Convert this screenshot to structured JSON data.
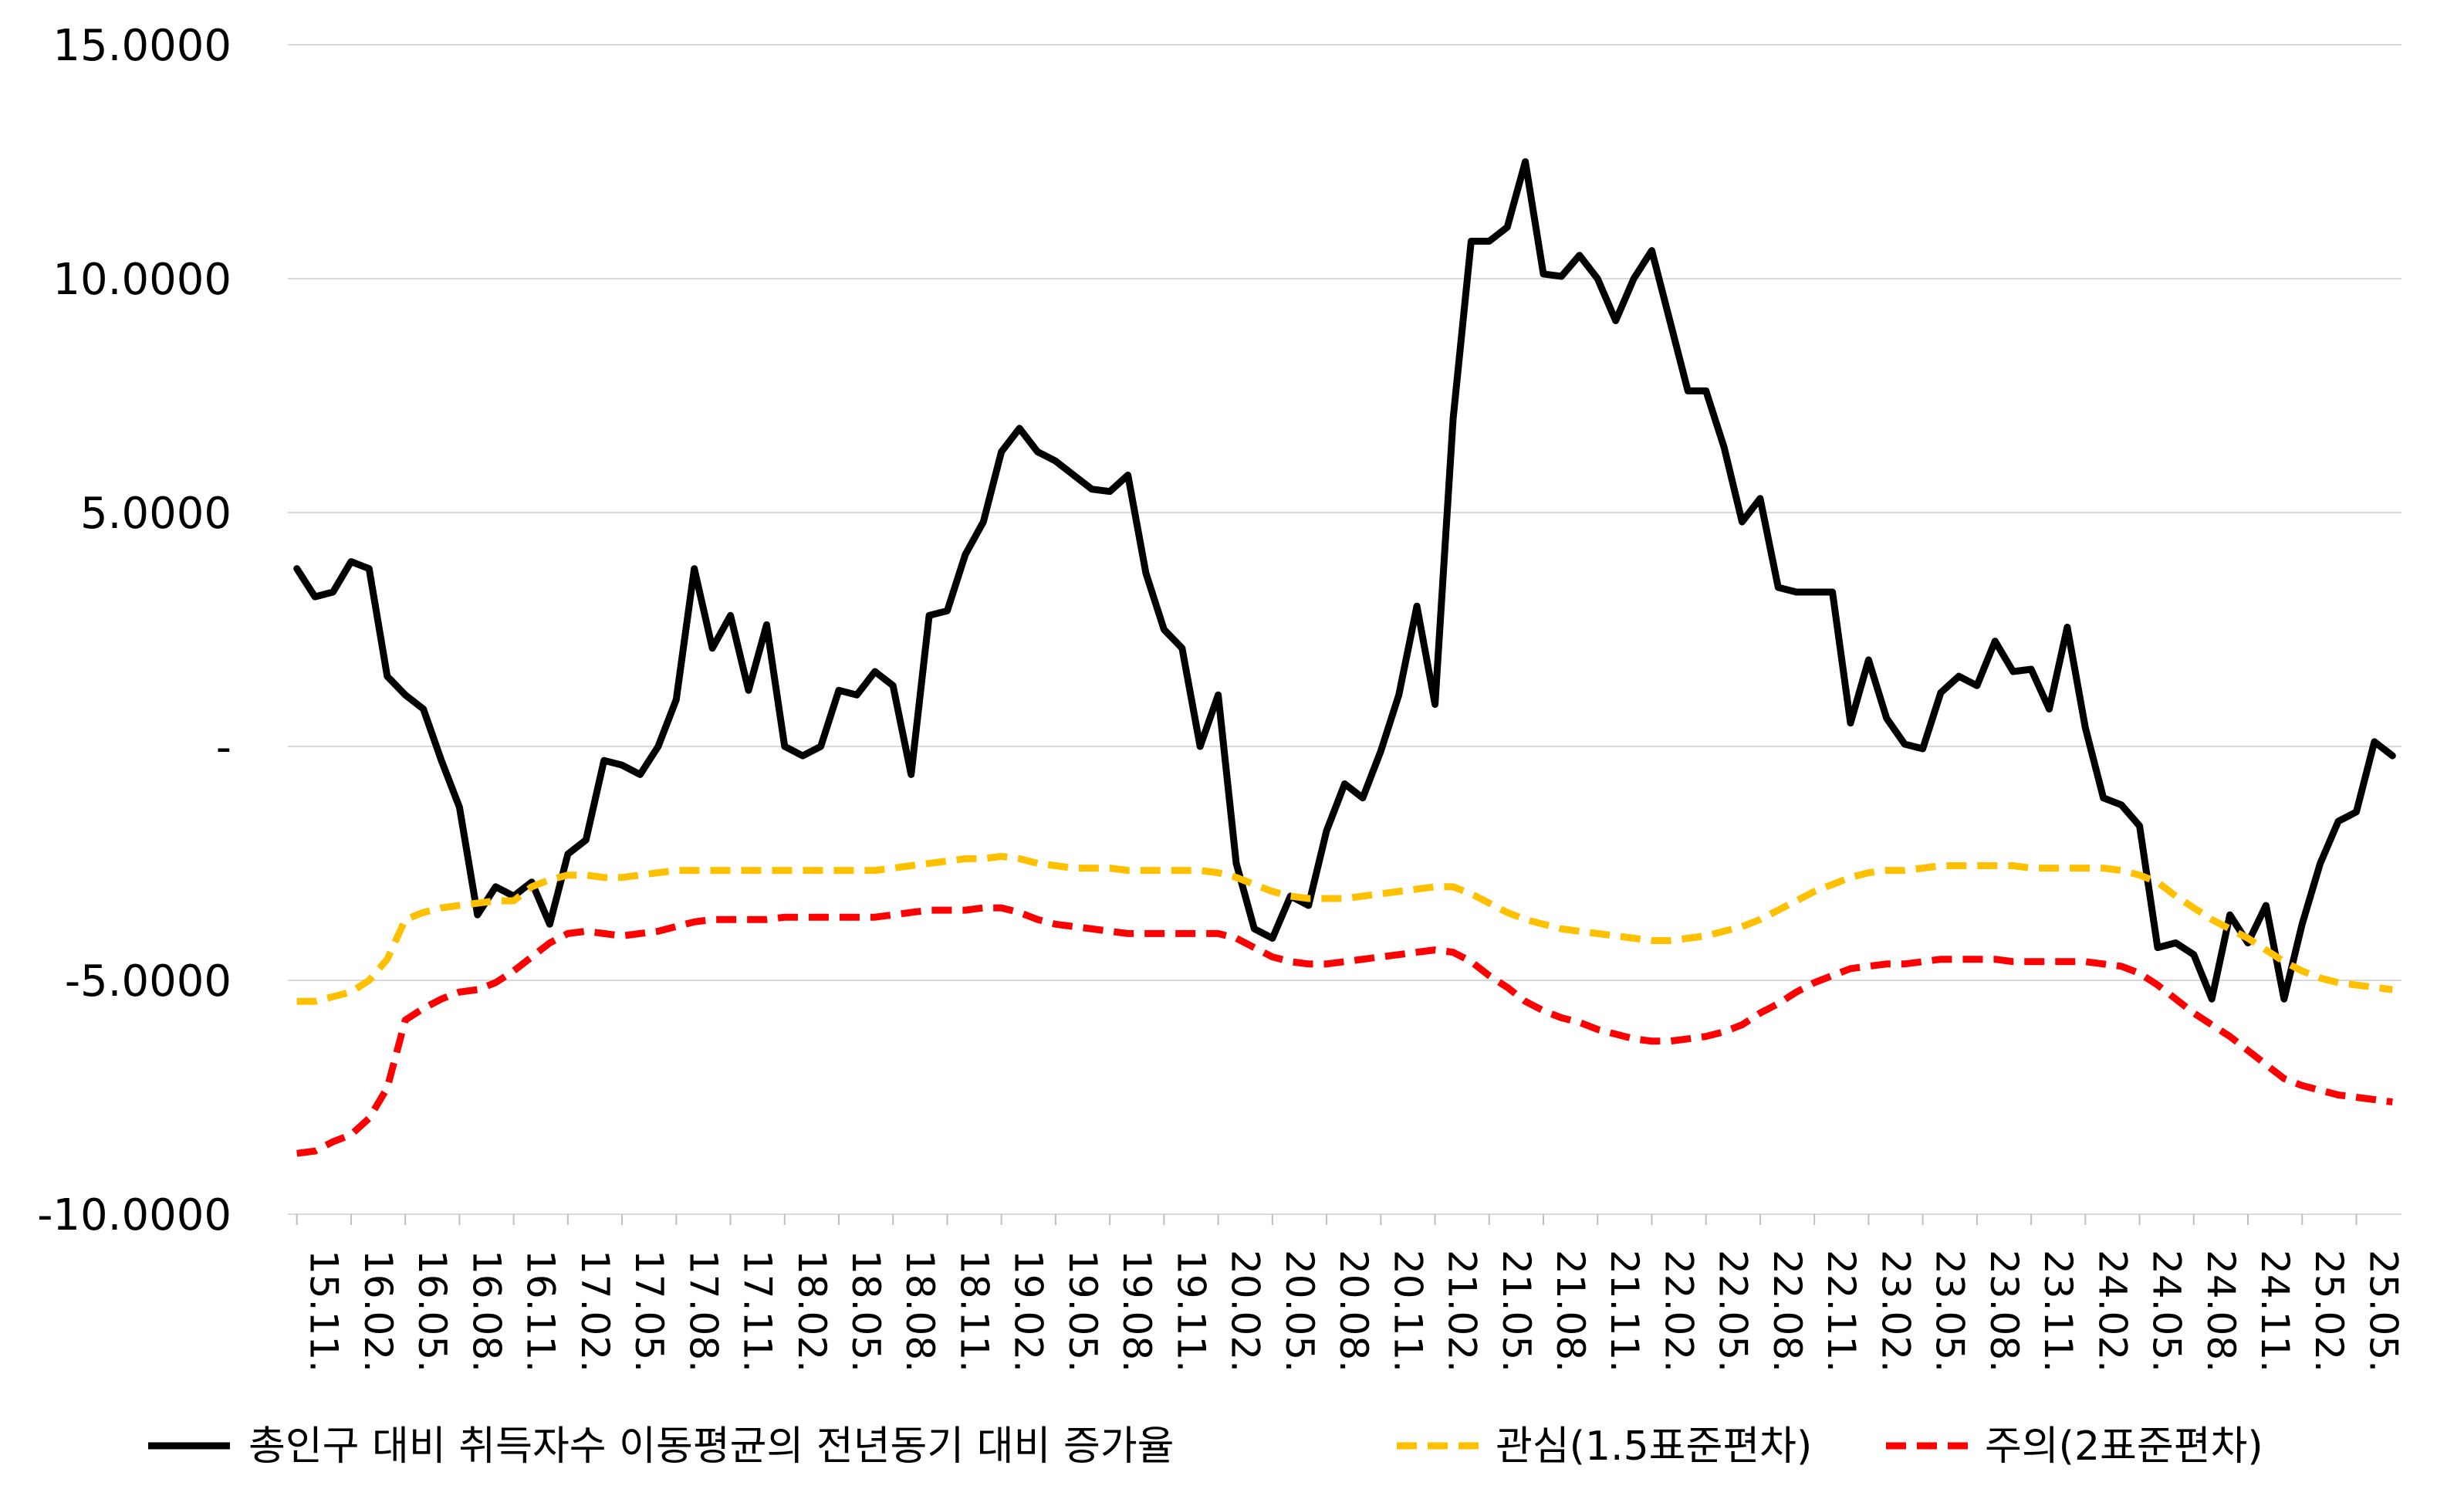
{
  "chart_data": {
    "type": "line",
    "title": "",
    "xlabel": "",
    "ylabel": "",
    "ylim": [
      -10,
      15
    ],
    "y_ticks": [
      {
        "value": 15,
        "label": "15.0000"
      },
      {
        "value": 10,
        "label": "10.0000"
      },
      {
        "value": 5,
        "label": "5.0000"
      },
      {
        "value": 0,
        "label": "-"
      },
      {
        "value": -5,
        "label": "-5.0000"
      },
      {
        "value": -10,
        "label": "-10.0000"
      }
    ],
    "x_tick_labels": [
      "15.11.",
      "16.02.",
      "16.05.",
      "16.08.",
      "16.11.",
      "17.02.",
      "17.05.",
      "17.08.",
      "17.11.",
      "18.02.",
      "18.05.",
      "18.08.",
      "18.11.",
      "19.02.",
      "19.05.",
      "19.08.",
      "19.11.",
      "20.02.",
      "20.05.",
      "20.08.",
      "20.11.",
      "21.02.",
      "21.05.",
      "21.08.",
      "21.11.",
      "22.02.",
      "22.05.",
      "22.08.",
      "22.11.",
      "23.02.",
      "23.05.",
      "23.08.",
      "23.11.",
      "24.02.",
      "24.05.",
      "24.08.",
      "24.11.",
      "25.02.",
      "25.05."
    ],
    "x_tick_every": 3,
    "grid": true,
    "legend_position": "bottom",
    "series": [
      {
        "name": "총인구 대비 취득자수 이동평균의 전년동기 대비 증가율",
        "color": "#000000",
        "style": "solid",
        "values": [
          3.8,
          3.2,
          3.3,
          3.95,
          3.8,
          1.5,
          1.1,
          0.8,
          -0.3,
          -1.3,
          -3.6,
          -3.0,
          -3.2,
          -2.9,
          -3.8,
          -2.3,
          -2.0,
          -0.3,
          -0.4,
          -0.6,
          0.0,
          1.0,
          3.8,
          2.1,
          2.8,
          1.2,
          2.6,
          0.0,
          -0.2,
          0.0,
          1.2,
          1.1,
          1.6,
          1.3,
          -0.6,
          2.8,
          2.9,
          4.1,
          4.8,
          6.3,
          6.8,
          6.3,
          6.1,
          5.8,
          5.5,
          5.45,
          5.8,
          3.7,
          2.5,
          2.1,
          0.0,
          1.1,
          -2.5,
          -3.9,
          -4.1,
          -3.2,
          -3.4,
          -1.8,
          -0.8,
          -1.1,
          -0.1,
          1.1,
          3.0,
          0.9,
          7.0,
          10.8,
          10.8,
          11.1,
          12.5,
          10.1,
          10.05,
          10.5,
          10.0,
          9.1,
          10.0,
          10.6,
          9.1,
          7.6,
          7.6,
          6.4,
          4.8,
          5.3,
          3.4,
          3.3,
          3.3,
          3.3,
          0.5,
          1.85,
          0.6,
          0.05,
          -0.05,
          1.15,
          1.5,
          1.3,
          2.25,
          1.6,
          1.65,
          0.8,
          2.55,
          0.4,
          -1.1,
          -1.25,
          -1.7,
          -4.3,
          -4.2,
          -4.45,
          -5.4,
          -3.6,
          -4.2,
          -3.4,
          -5.4,
          -3.8,
          -2.5,
          -1.6,
          -1.4,
          0.1,
          -0.2
        ]
      },
      {
        "name": "관심(1.5표준편차)",
        "color": "#FFC000",
        "style": "dashed",
        "values": [
          -5.45,
          -5.45,
          -5.35,
          -5.25,
          -5.0,
          -4.55,
          -3.7,
          -3.55,
          -3.45,
          -3.4,
          -3.35,
          -3.3,
          -3.3,
          -3.0,
          -2.85,
          -2.75,
          -2.75,
          -2.8,
          -2.8,
          -2.75,
          -2.7,
          -2.65,
          -2.65,
          -2.65,
          -2.65,
          -2.65,
          -2.65,
          -2.65,
          -2.65,
          -2.65,
          -2.65,
          -2.65,
          -2.65,
          -2.6,
          -2.55,
          -2.5,
          -2.45,
          -2.4,
          -2.4,
          -2.35,
          -2.4,
          -2.5,
          -2.55,
          -2.6,
          -2.6,
          -2.6,
          -2.65,
          -2.65,
          -2.65,
          -2.65,
          -2.65,
          -2.7,
          -2.8,
          -2.95,
          -3.1,
          -3.2,
          -3.25,
          -3.25,
          -3.25,
          -3.2,
          -3.15,
          -3.1,
          -3.05,
          -3.0,
          -3.0,
          -3.15,
          -3.35,
          -3.55,
          -3.7,
          -3.8,
          -3.9,
          -3.95,
          -4.0,
          -4.05,
          -4.1,
          -4.15,
          -4.15,
          -4.1,
          -4.05,
          -3.95,
          -3.85,
          -3.7,
          -3.5,
          -3.3,
          -3.1,
          -2.95,
          -2.8,
          -2.7,
          -2.65,
          -2.65,
          -2.6,
          -2.55,
          -2.55,
          -2.55,
          -2.55,
          -2.55,
          -2.6,
          -2.6,
          -2.6,
          -2.6,
          -2.6,
          -2.65,
          -2.75,
          -2.9,
          -3.2,
          -3.45,
          -3.7,
          -3.9,
          -4.1,
          -4.35,
          -4.6,
          -4.8,
          -4.95,
          -5.05,
          -5.1,
          -5.15,
          -5.2
        ]
      },
      {
        "name": "주의(2표준편차)",
        "color": "#FF0000",
        "style": "dashed",
        "values": [
          -8.7,
          -8.65,
          -8.45,
          -8.3,
          -7.95,
          -7.3,
          -5.85,
          -5.6,
          -5.4,
          -5.25,
          -5.2,
          -5.05,
          -4.8,
          -4.5,
          -4.2,
          -4.0,
          -3.95,
          -4.0,
          -4.05,
          -4.0,
          -3.95,
          -3.85,
          -3.75,
          -3.7,
          -3.7,
          -3.7,
          -3.7,
          -3.65,
          -3.65,
          -3.65,
          -3.65,
          -3.65,
          -3.65,
          -3.6,
          -3.55,
          -3.5,
          -3.5,
          -3.5,
          -3.45,
          -3.45,
          -3.55,
          -3.7,
          -3.8,
          -3.85,
          -3.9,
          -3.95,
          -4.0,
          -4.0,
          -4.0,
          -4.0,
          -4.0,
          -4.0,
          -4.1,
          -4.3,
          -4.5,
          -4.6,
          -4.65,
          -4.65,
          -4.6,
          -4.55,
          -4.5,
          -4.45,
          -4.4,
          -4.35,
          -4.4,
          -4.6,
          -4.9,
          -5.15,
          -5.45,
          -5.65,
          -5.8,
          -5.9,
          -6.05,
          -6.15,
          -6.25,
          -6.3,
          -6.3,
          -6.25,
          -6.2,
          -6.1,
          -5.95,
          -5.7,
          -5.5,
          -5.25,
          -5.05,
          -4.9,
          -4.75,
          -4.7,
          -4.65,
          -4.65,
          -4.6,
          -4.55,
          -4.55,
          -4.55,
          -4.55,
          -4.6,
          -4.6,
          -4.6,
          -4.6,
          -4.6,
          -4.65,
          -4.7,
          -4.85,
          -5.1,
          -5.4,
          -5.7,
          -5.95,
          -6.2,
          -6.5,
          -6.8,
          -7.1,
          -7.25,
          -7.35,
          -7.45,
          -7.5,
          -7.55,
          -7.6
        ]
      }
    ]
  }
}
